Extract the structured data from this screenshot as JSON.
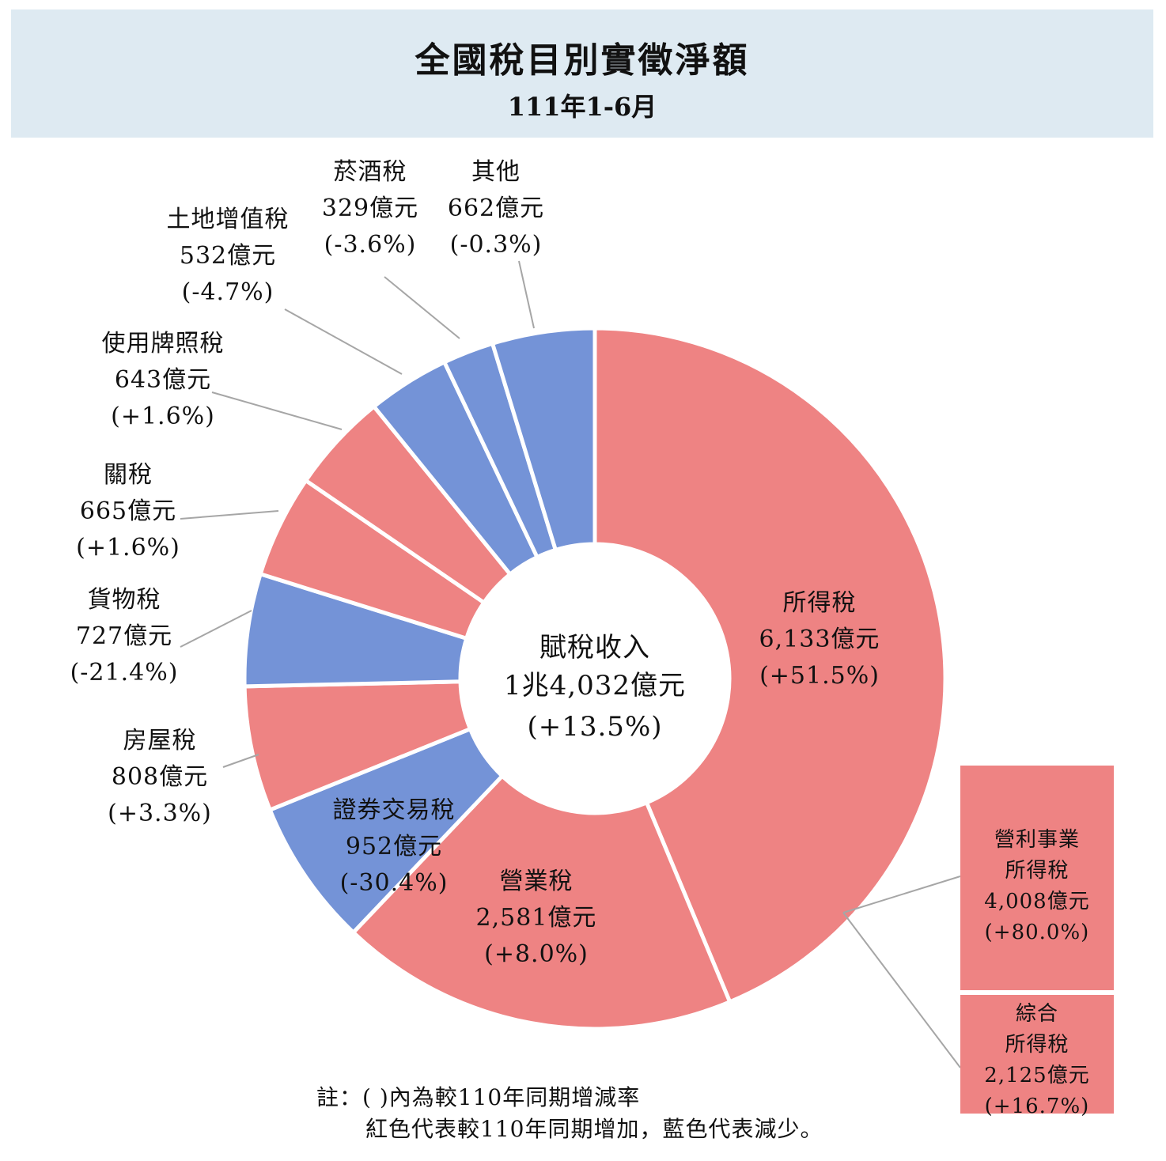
{
  "header": {
    "title": "全國稅目別實徵淨額",
    "subtitle": "111年1-6月"
  },
  "chart_data": {
    "type": "donut",
    "title": "全國稅目別實徵淨額",
    "subtitle": "111年1-6月",
    "unit": "億元",
    "center": {
      "label": "賦稅收入",
      "total": "1兆4,032億元",
      "change": "(+13.5%)"
    },
    "slices": [
      {
        "name": "所得稅",
        "value": 6133,
        "value_text": "6,133億元",
        "change": "(+51.5%)",
        "color": "#ee8383"
      },
      {
        "name": "營業稅",
        "value": 2581,
        "value_text": "2,581億元",
        "change": "(+8.0%)",
        "color": "#ee8383"
      },
      {
        "name": "證券交易稅",
        "value": 952,
        "value_text": "952億元",
        "change": "(-30.4%)",
        "color": "#7493d7"
      },
      {
        "name": "房屋稅",
        "value": 808,
        "value_text": "808億元",
        "change": "(+3.3%)",
        "color": "#ee8383"
      },
      {
        "name": "貨物稅",
        "value": 727,
        "value_text": "727億元",
        "change": "(-21.4%)",
        "color": "#7493d7"
      },
      {
        "name": "關稅",
        "value": 665,
        "value_text": "665億元",
        "change": "(+1.6%)",
        "color": "#ee8383"
      },
      {
        "name": "使用牌照稅",
        "value": 643,
        "value_text": "643億元",
        "change": "(+1.6%)",
        "color": "#ee8383"
      },
      {
        "name": "土地增值稅",
        "value": 532,
        "value_text": "532億元",
        "change": "(-4.7%)",
        "color": "#7493d7"
      },
      {
        "name": "菸酒稅",
        "value": 329,
        "value_text": "329億元",
        "change": "(-3.6%)",
        "color": "#7493d7"
      },
      {
        "name": "其他",
        "value": 662,
        "value_text": "662億元",
        "change": "(-0.3%)",
        "color": "#7493d7"
      }
    ],
    "breakdown": {
      "parent": "所得稅",
      "items": [
        {
          "name_lines": [
            "營利事業",
            "所得稅"
          ],
          "value": 4008,
          "value_text": "4,008億元",
          "change": "(+80.0%)"
        },
        {
          "name_lines": [
            "綜合",
            "所得稅"
          ],
          "value": 2125,
          "value_text": "2,125億元",
          "change": "(+16.7%)"
        }
      ]
    },
    "colors": {
      "increase": "#ee8383",
      "decrease": "#7493d7"
    }
  },
  "note": {
    "line1": "註：( )內為較110年同期增減率",
    "line2": "紅色代表較110年同期增加，藍色代表減少。"
  }
}
